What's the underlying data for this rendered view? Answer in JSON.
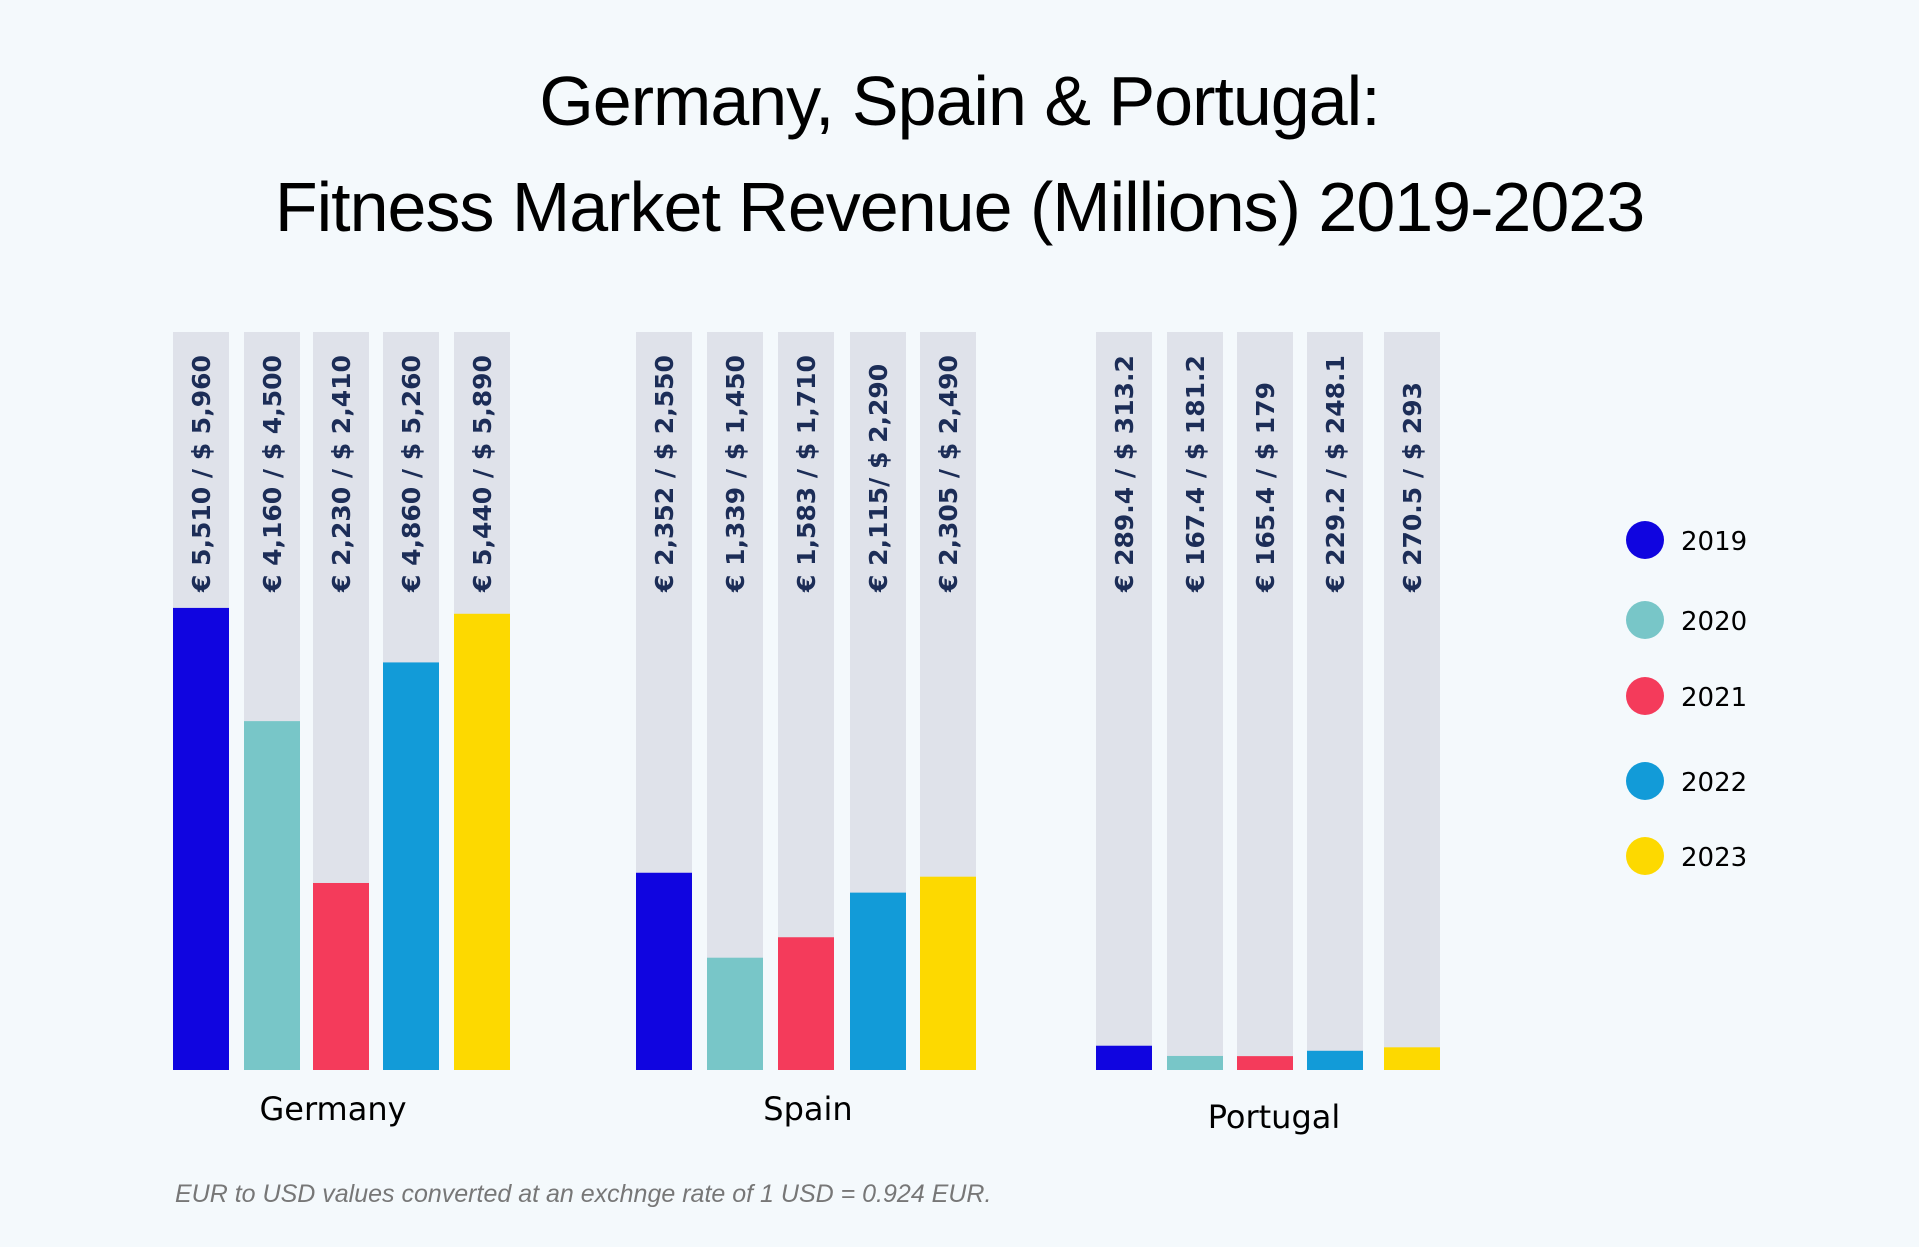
{
  "chart_data": {
    "type": "bar",
    "title": "Germany, Spain & Portugal: Fitness Market Revenue (Millions) 2019-2023",
    "title_lines": [
      "Germany, Spain & Portugal:",
      "Fitness Market Revenue (Millions) 2019-2023"
    ],
    "xlabel": "",
    "ylabel": "",
    "unit": "EUR millions",
    "categories": [
      "Germany",
      "Spain",
      "Portugal"
    ],
    "series": [
      {
        "name": "2019",
        "color": "#1005e0",
        "values": [
          5510,
          2352,
          289.4
        ],
        "labels": [
          "€ 5,510 / $ 5,960",
          "€ 2,352 / $ 2,550",
          "€ 289.4 / $ 313.2"
        ]
      },
      {
        "name": "2020",
        "color": "#78c6c8",
        "values": [
          4160,
          1339,
          167.4
        ],
        "labels": [
          "€ 4,160 / $ 4,500",
          "€ 1,339 / $ 1,450",
          "€ 167.4 / $ 181.2"
        ]
      },
      {
        "name": "2021",
        "color": "#f43b5b",
        "values": [
          2230,
          1583,
          165.4
        ],
        "labels": [
          "€ 2,230 / $ 2,410",
          "€ 1,583 / $ 1,710",
          "€ 165.4 / $ 179"
        ]
      },
      {
        "name": "2022",
        "color": "#129bd8",
        "values": [
          4860,
          2115,
          229.2
        ],
        "labels": [
          "€ 4,860 / $ 5,260",
          "€ 2,115/ $ 2,290",
          "€ 229.2 / $ 248.1"
        ]
      },
      {
        "name": "2023",
        "color": "#fdd900",
        "values": [
          5440,
          2305,
          270.5
        ],
        "labels": [
          "€ 5,440 / $ 5,890",
          "€ 2,305 / $ 2,490",
          "€ 270.5 / $ 293"
        ]
      }
    ],
    "usd_values": {
      "Germany": [
        5960,
        4500,
        2410,
        5260,
        5890
      ],
      "Spain": [
        2550,
        1450,
        1710,
        2290,
        2490
      ],
      "Portugal": [
        313.2,
        181.2,
        179,
        248.1,
        293
      ]
    },
    "legend": {
      "entries": [
        "2019",
        "2020",
        "2021",
        "2022",
        "2023"
      ],
      "position": "right"
    },
    "grid": false,
    "footnote": "EUR to USD values converted at an exchnge rate of 1 USD = 0.924 EUR."
  }
}
